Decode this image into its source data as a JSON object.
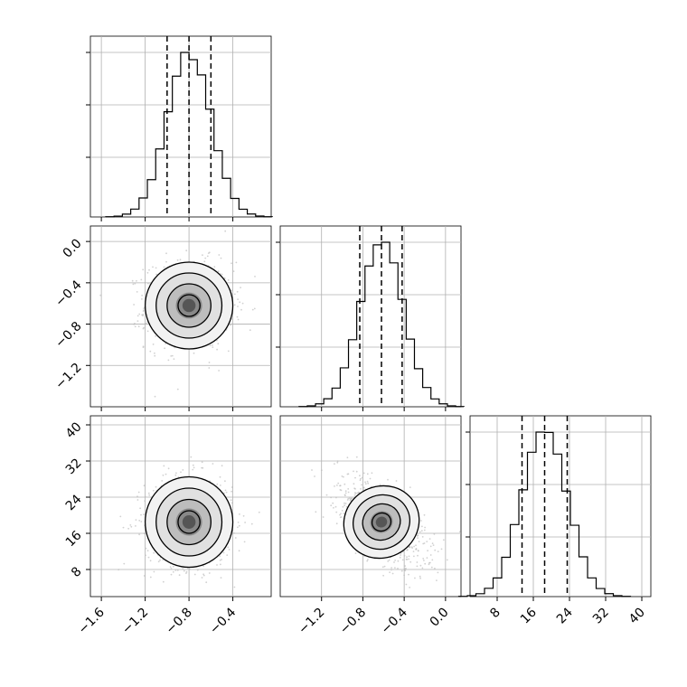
{
  "chart_data": {
    "type": "corner",
    "grid": true,
    "parameters": [
      {
        "range": [
          -1.7,
          -0.05
        ],
        "ticks": [
          "−1.6",
          "−1.2",
          "−0.8",
          "−0.4"
        ],
        "tick_values": [
          -1.6,
          -1.2,
          -0.8,
          -0.4
        ],
        "mean": -0.8,
        "sigma": 0.2,
        "quantiles": [
          -1.0,
          -0.8,
          -0.6
        ]
      },
      {
        "range": [
          -1.6,
          0.15
        ],
        "ticks": [
          "−1.2",
          "−0.8",
          "−0.4",
          "0.0"
        ],
        "tick_values": [
          -1.2,
          -0.8,
          -0.4,
          0.0
        ],
        "mean": -0.62,
        "sigma": 0.21,
        "quantiles": [
          -0.83,
          -0.62,
          -0.42
        ]
      },
      {
        "range": [
          2,
          42
        ],
        "ticks": [
          "8",
          "16",
          "24",
          "32",
          "40"
        ],
        "tick_values": [
          8,
          16,
          24,
          32,
          40
        ],
        "mean": 18.5,
        "sigma": 5.0,
        "quantiles": [
          13.5,
          18.5,
          23.5
        ]
      }
    ],
    "correlations": {
      "0-1": 0.0,
      "0-2": 0.0,
      "1-2": -0.6
    },
    "histogram_bins": 20,
    "contour_levels_sigma": [
      0.5,
      1.0,
      1.5,
      2.0
    ]
  },
  "colors": {
    "histogram": "#000000",
    "quantile_line": "#000000",
    "scatter_points": "#bdbdbd",
    "contour": "#000000",
    "grid": "#b0b0b0"
  }
}
